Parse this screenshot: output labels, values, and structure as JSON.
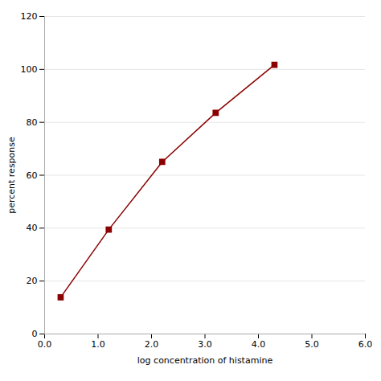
{
  "chart_data": {
    "type": "line",
    "x": [
      0.3,
      1.2,
      2.2,
      3.2,
      4.3
    ],
    "values": [
      13.86,
      39.45,
      65.03,
      83.58,
      101.71
    ],
    "errors": [
      0.48,
      0.87,
      1.08,
      0.67,
      0.85
    ],
    "xlabel": "log concentration of histamine",
    "ylabel": "percent response",
    "xlim": [
      0,
      6
    ],
    "ylim": [
      0,
      120
    ],
    "xticks": [
      0,
      1,
      2,
      3,
      4,
      5,
      6
    ],
    "yticks": [
      0,
      20,
      40,
      60,
      80,
      100,
      120
    ],
    "color": "#8B0000",
    "marker": "square",
    "grid": "y"
  }
}
